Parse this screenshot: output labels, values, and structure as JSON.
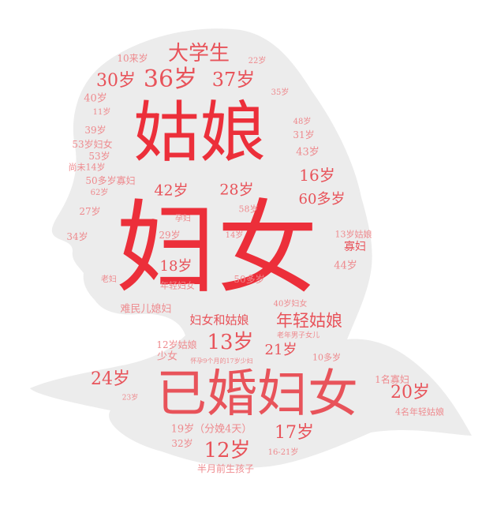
{
  "colors": {
    "background": "#ffffff",
    "silhouette": "#ececec",
    "primary_red": "#ec2f3a",
    "mid_red": "#e8535a",
    "light_red": "#ee8a8e"
  },
  "words": [
    {
      "text": "妇女",
      "color": "#ec2f3a"
    },
    {
      "text": "姑娘",
      "color": "#ec2f3a"
    },
    {
      "text": "已婚妇女",
      "color": "#e8535a"
    },
    {
      "text": "大学生",
      "color": "#e8535a"
    },
    {
      "text": "30岁",
      "color": "#e8535a"
    },
    {
      "text": "36岁",
      "color": "#e8535a"
    },
    {
      "text": "37岁",
      "color": "#e8535a"
    },
    {
      "text": "10来岁",
      "color": "#ee8a8e"
    },
    {
      "text": "22岁",
      "color": "#ee8a8e"
    },
    {
      "text": "40岁",
      "color": "#ee8a8e"
    },
    {
      "text": "35岁",
      "color": "#ee8a8e"
    },
    {
      "text": "11岁",
      "color": "#ee8a8e"
    },
    {
      "text": "48岁",
      "color": "#ee8a8e"
    },
    {
      "text": "39岁",
      "color": "#ee8a8e"
    },
    {
      "text": "31岁",
      "color": "#ee8a8e"
    },
    {
      "text": "53岁妇女",
      "color": "#ee8a8e"
    },
    {
      "text": "53岁",
      "color": "#ee8a8e"
    },
    {
      "text": "43岁",
      "color": "#ee8a8e"
    },
    {
      "text": "尚未14岁",
      "color": "#ee8a8e"
    },
    {
      "text": "16岁",
      "color": "#e8535a"
    },
    {
      "text": "50多岁寡妇",
      "color": "#ee8a8e"
    },
    {
      "text": "42岁",
      "color": "#e8535a"
    },
    {
      "text": "28岁",
      "color": "#e8535a"
    },
    {
      "text": "62岁",
      "color": "#ee8a8e"
    },
    {
      "text": "60多岁",
      "color": "#e8535a"
    },
    {
      "text": "27岁",
      "color": "#ee8a8e"
    },
    {
      "text": "58岁",
      "color": "#ee8a8e"
    },
    {
      "text": "孕妇",
      "color": "#ee8a8e"
    },
    {
      "text": "34岁",
      "color": "#ee8a8e"
    },
    {
      "text": "29岁",
      "color": "#ee8a8e"
    },
    {
      "text": "14岁",
      "color": "#ee8a8e"
    },
    {
      "text": "13岁姑娘",
      "color": "#ee8a8e"
    },
    {
      "text": "寡妇",
      "color": "#e8535a"
    },
    {
      "text": "44岁",
      "color": "#ee8a8e"
    },
    {
      "text": "18岁",
      "color": "#e8535a"
    },
    {
      "text": "老妇",
      "color": "#ee8a8e"
    },
    {
      "text": "年轻妇女",
      "color": "#ee8a8e"
    },
    {
      "text": "50多岁",
      "color": "#ee8a8e"
    },
    {
      "text": "难民儿媳妇",
      "color": "#ee8a8e"
    },
    {
      "text": "40岁妇女",
      "color": "#ee8a8e"
    },
    {
      "text": "妇女和姑娘",
      "color": "#e8535a"
    },
    {
      "text": "年轻姑娘",
      "color": "#e8535a"
    },
    {
      "text": "老年男子女儿",
      "color": "#ee8a8e"
    },
    {
      "text": "12岁姑娘",
      "color": "#ee8a8e"
    },
    {
      "text": "13岁",
      "color": "#e8535a"
    },
    {
      "text": "21岁",
      "color": "#e8535a"
    },
    {
      "text": "少女",
      "color": "#ee8a8e"
    },
    {
      "text": "怀孕9个月的17岁少妇",
      "color": "#ee8a8e"
    },
    {
      "text": "10多岁",
      "color": "#ee8a8e"
    },
    {
      "text": "24岁",
      "color": "#e8535a"
    },
    {
      "text": "1名寡妇",
      "color": "#ee8a8e"
    },
    {
      "text": "20岁",
      "color": "#e8535a"
    },
    {
      "text": "23岁",
      "color": "#ee8a8e"
    },
    {
      "text": "4名年轻姑娘",
      "color": "#ee8a8e"
    },
    {
      "text": "19岁（分娩4天）",
      "color": "#ee8a8e"
    },
    {
      "text": "17岁",
      "color": "#e8535a"
    },
    {
      "text": "32岁",
      "color": "#ee8a8e"
    },
    {
      "text": "12岁",
      "color": "#e8535a"
    },
    {
      "text": "16-21岁",
      "color": "#ee8a8e"
    },
    {
      "text": "半月前生孩子",
      "color": "#ee8a8e"
    }
  ]
}
